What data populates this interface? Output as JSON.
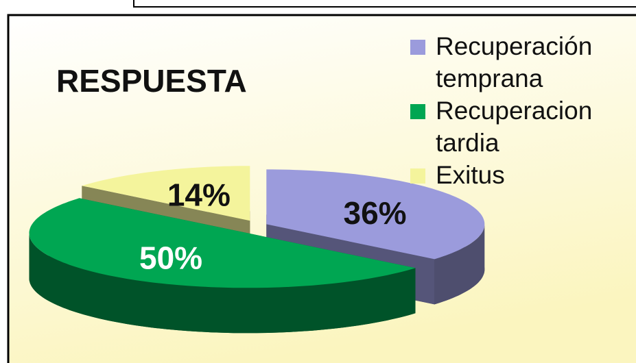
{
  "chart_data": {
    "type": "pie",
    "title": "RESPUESTA",
    "labels": [
      "Recuperación temprana",
      "Recuperacion tardia",
      "Exitus"
    ],
    "values": [
      36,
      50,
      14
    ],
    "value_labels": [
      "36%",
      "50%",
      "14%"
    ],
    "colors": [
      "#9b9bdc",
      "#00a652",
      "#f4f49c"
    ],
    "legend": "top-right"
  }
}
